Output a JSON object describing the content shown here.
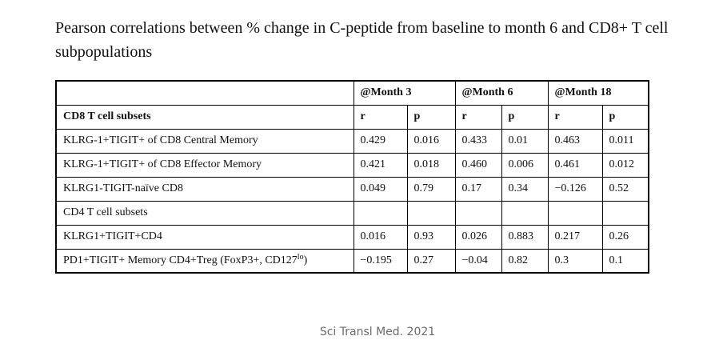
{
  "title": "Pearson correlations between % change in C-peptide from baseline to month 6 and CD8+ T cell subpopulations",
  "groups": [
    "@Month 3",
    "@Month 6",
    "@Month 18"
  ],
  "subheader": {
    "label": "CD8 T cell subsets",
    "r": "r",
    "p": "p"
  },
  "rows": [
    {
      "label": "KLRG-1+TIGIT+ of CD8 Central Memory",
      "v": [
        "0.429",
        "0.016",
        "0.433",
        "0.01",
        "0.463",
        "0.011"
      ]
    },
    {
      "label": "KLRG-1+TIGIT+ of CD8 Effector Memory",
      "v": [
        "0.421",
        "0.018",
        "0.460",
        "0.006",
        "0.461",
        "0.012"
      ]
    },
    {
      "label": "KLRG1-TIGIT-naïve CD8",
      "v": [
        "0.049",
        "0.79",
        "0.17",
        "0.34",
        "−0.126",
        "0.52"
      ]
    },
    {
      "label": "CD4 T cell subsets",
      "v": [
        "",
        "",
        "",
        "",
        "",
        ""
      ]
    },
    {
      "label": "KLRG1+TIGIT+CD4",
      "v": [
        "0.016",
        "0.93",
        "0.026",
        "0.883",
        "0.217",
        "0.26"
      ]
    },
    {
      "label": "PD1+TIGIT+ Memory CD4+Treg (FoxP3+, CD127",
      "label_sup": "lo",
      "label_tail": ")",
      "v": [
        "−0.195",
        "0.27",
        "−0.04",
        "0.82",
        "0.3",
        "0.1"
      ]
    }
  ],
  "caption": "Sci Transl Med. 2021"
}
